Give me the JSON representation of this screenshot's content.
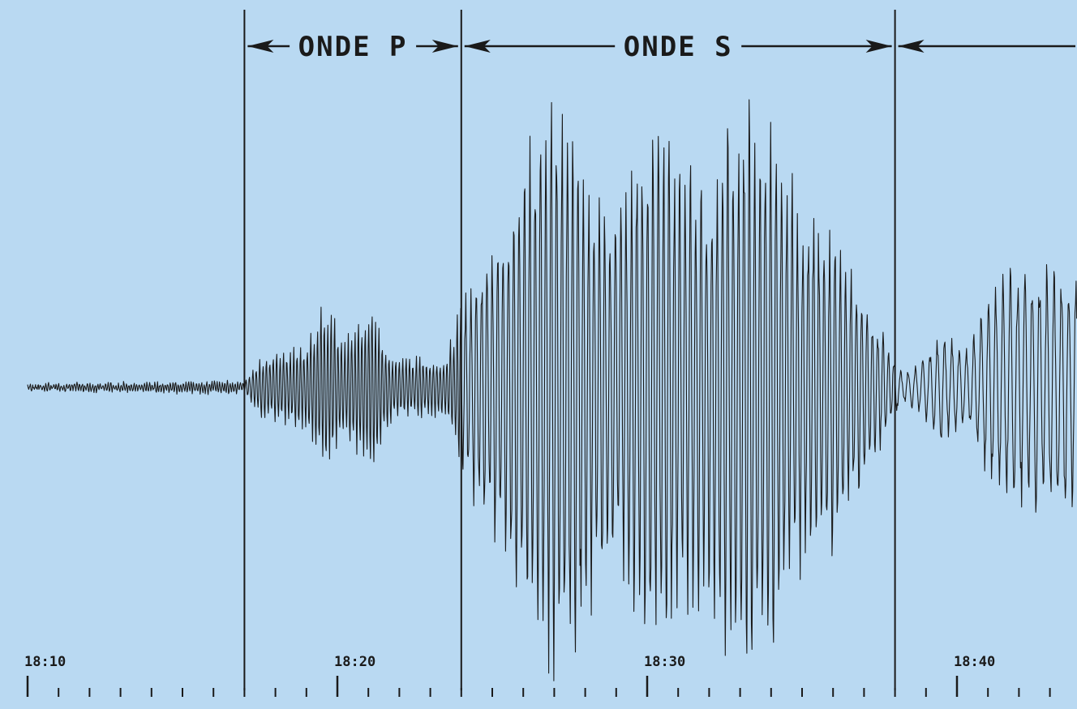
{
  "chart_data": {
    "type": "line",
    "title": "",
    "xlabel": "",
    "ylabel": "",
    "x_range": [
      "18:10",
      "18:44"
    ],
    "time_labels": [
      "18:10",
      "18:20",
      "18:30",
      "18:40"
    ],
    "time_label_minutes": [
      10,
      20,
      30,
      40
    ],
    "minor_tick_interval_minutes": 1,
    "phases": [
      {
        "label": "ONDE P",
        "start": "18:17",
        "end": "18:24"
      },
      {
        "label": "ONDE S",
        "start": "18:24",
        "end": "18:38"
      },
      {
        "label": "",
        "start": "18:38",
        "end": "18:44"
      }
    ],
    "amplitude_envelope": {
      "x_minutes": [
        10.0,
        17.0,
        17.5,
        19.0,
        19.6,
        20.2,
        21.0,
        21.8,
        22.8,
        23.5,
        24.2,
        25.5,
        26.7,
        27.3,
        28.0,
        28.8,
        29.5,
        30.3,
        31.0,
        32.0,
        32.8,
        33.5,
        34.2,
        35.0,
        36.0,
        37.0,
        37.8,
        38.2,
        38.8,
        39.5,
        40.3,
        41.2,
        42.0,
        44.0
      ],
      "relative_amplitude": [
        0.01,
        0.02,
        0.1,
        0.14,
        0.3,
        0.15,
        0.3,
        0.1,
        0.1,
        0.1,
        0.35,
        0.6,
        0.95,
        1.0,
        0.8,
        0.55,
        0.75,
        0.9,
        0.75,
        0.7,
        0.95,
        1.0,
        0.85,
        0.6,
        0.55,
        0.3,
        0.15,
        0.05,
        0.08,
        0.18,
        0.12,
        0.35,
        0.4,
        0.4
      ]
    },
    "grid": false,
    "legend": "none"
  },
  "colors": {
    "background": "#b9d9f2",
    "trace": "#1a1a1a"
  }
}
